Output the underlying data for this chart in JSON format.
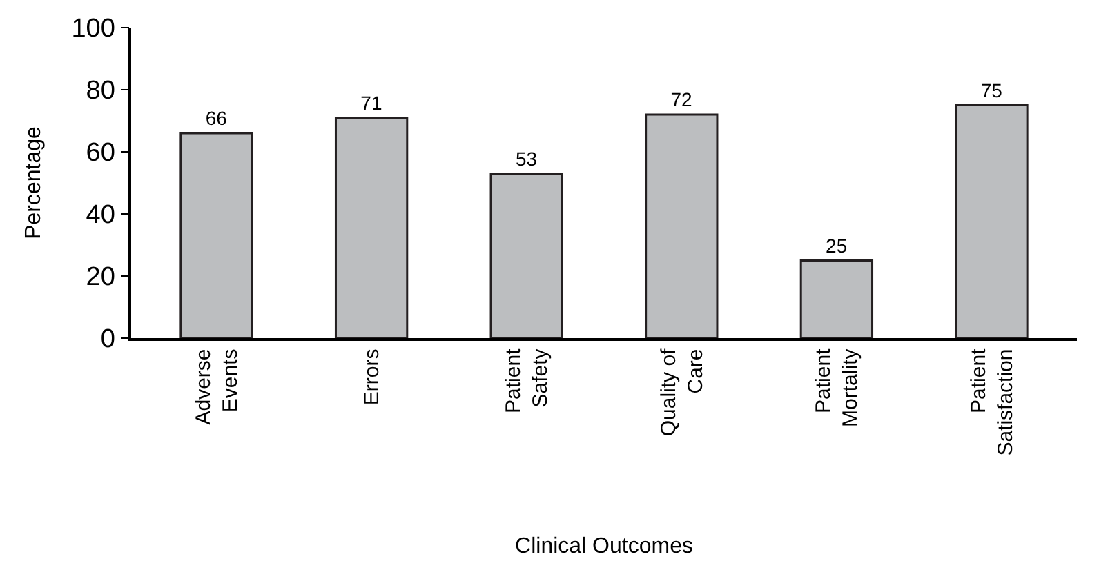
{
  "chart_data": {
    "type": "bar",
    "categories": [
      "Adverse Events",
      "Errors",
      "Patient Safety",
      "Quality of Care",
      "Patient Mortality",
      "Patient Satisfaction"
    ],
    "values": [
      66,
      71,
      53,
      72,
      25,
      75
    ],
    "color": "#bcbec0",
    "xlabel": "Clinical Outcomes",
    "ylabel": "Percentage",
    "ylim": [
      0,
      100
    ],
    "yticks": [
      0,
      20,
      40,
      60,
      80,
      100
    ],
    "data_labels": true,
    "grid": false,
    "legend": false
  }
}
